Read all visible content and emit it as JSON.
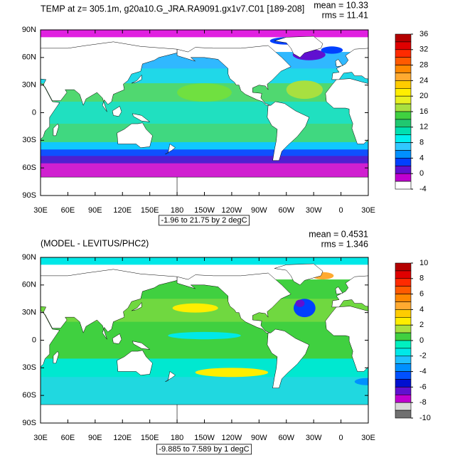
{
  "panels": [
    {
      "title": "TEMP at z= 305.1m, g20a10.G_JRA.RA9091.gx1v7.C01 [189-208]",
      "stats": [
        "mean = 10.33",
        "rms = 11.41"
      ],
      "yticks": [
        "90N",
        "60N",
        "30N",
        "0",
        "30S",
        "60S",
        "90S"
      ],
      "xticks": [
        "30E",
        "60E",
        "90E",
        "120E",
        "150E",
        "180",
        "150W",
        "120W",
        "90W",
        "60W",
        "30W",
        "0",
        "30E"
      ],
      "info": "-1.96 to 21.75 by 2 degC",
      "colorbar": {
        "ticks": [
          36,
          32,
          28,
          24,
          20,
          16,
          12,
          8,
          4,
          0,
          -4
        ],
        "colors": [
          "#b40000",
          "#e00000",
          "#ff2a00",
          "#ff5a00",
          "#ff8800",
          "#ffaa30",
          "#ffcc00",
          "#ffee00",
          "#e8f020",
          "#a8e040",
          "#40d040",
          "#20c870",
          "#00e0b0",
          "#00f0f0",
          "#30c8ff",
          "#0090ff",
          "#0040ff",
          "#6010d0",
          "#c000d0",
          "#ffffff"
        ]
      }
    },
    {
      "title": "(MODEL - LEVITUS/PHC2)",
      "stats": [
        "mean = 0.4531",
        "rms = 1.346"
      ],
      "yticks": [
        "90N",
        "60N",
        "30N",
        "0",
        "30S",
        "60S",
        "90S"
      ],
      "xticks": [
        "30E",
        "60E",
        "90E",
        "120E",
        "150E",
        "180",
        "150W",
        "120W",
        "90W",
        "60W",
        "30W",
        "0",
        "30E"
      ],
      "info": "-9.885 to 7.589 by 1 degC",
      "colorbar": {
        "ticks": [
          10,
          8,
          6,
          4,
          2,
          0,
          -2,
          -4,
          -6,
          -8,
          -10
        ],
        "colors": [
          "#b40000",
          "#e00000",
          "#ff2a00",
          "#ff5a00",
          "#ff8800",
          "#ffaa30",
          "#ffcc00",
          "#ffee00",
          "#a8e040",
          "#40d040",
          "#00f0c0",
          "#00e8e8",
          "#20c0ff",
          "#0090ff",
          "#0050ff",
          "#0010d0",
          "#6010d0",
          "#c000d0",
          "#d8d8d8",
          "#707070"
        ]
      }
    }
  ]
}
